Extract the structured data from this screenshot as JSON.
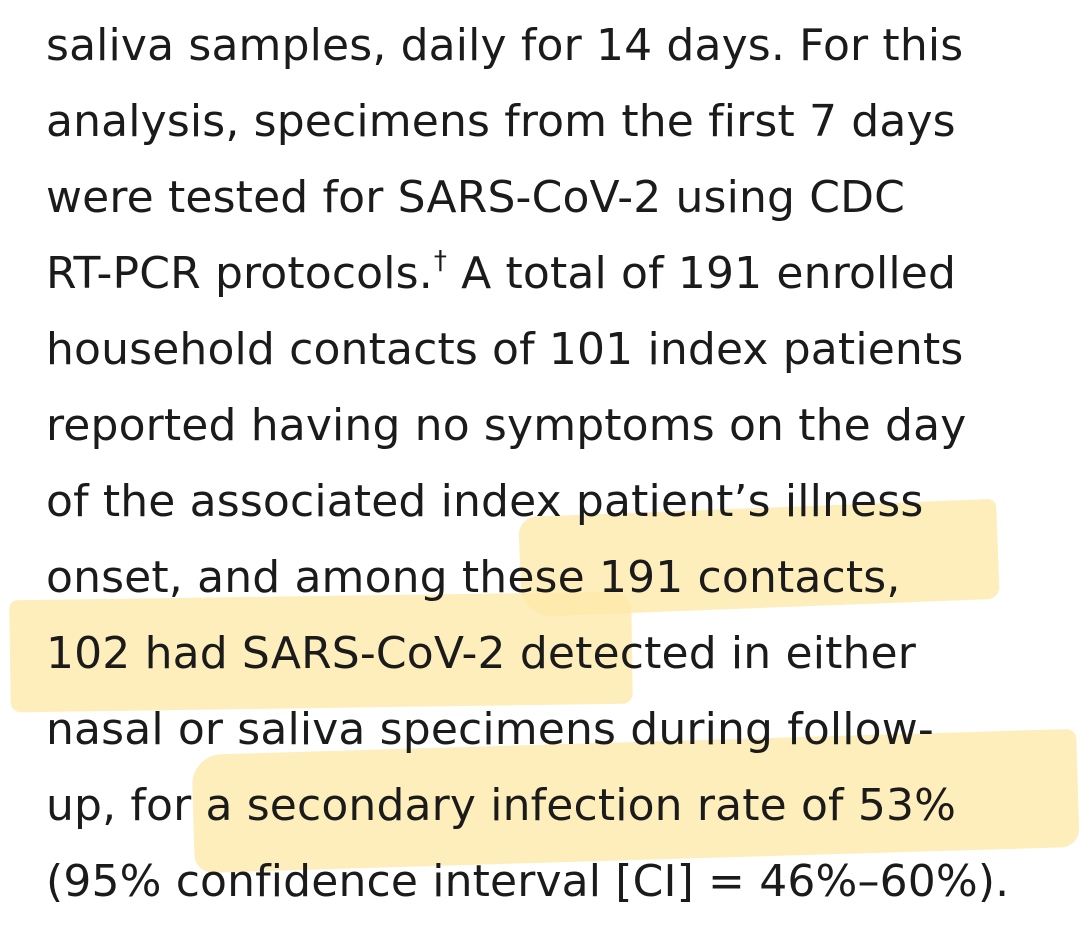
{
  "document": {
    "lines": [
      "saliva samples, daily for 14 days. For this",
      "analysis, specimens from the first 7 days",
      "were tested for SARS-CoV-2 using CDC",
      "RT-PCR protocols.",
      " A total of 191 enrolled",
      "household contacts of 101 index patients",
      "reported having no symptoms on the day",
      "of the associated index patient’s illness",
      "onset, and among these 191 contacts,",
      "102 had SARS-CoV-2 detected in either",
      "nasal or saliva specimens during follow-",
      "up, for a secondary infection rate of 53%",
      "(95% confidence interval [CI] = 46%–60%)."
    ],
    "footnote_marker": "†"
  },
  "highlights": {
    "color": "#fde9a8",
    "phrases": [
      "these 191 contacts,",
      "102 had SARS-CoV-2 detected",
      "a secondary infection rate of 53%"
    ]
  }
}
